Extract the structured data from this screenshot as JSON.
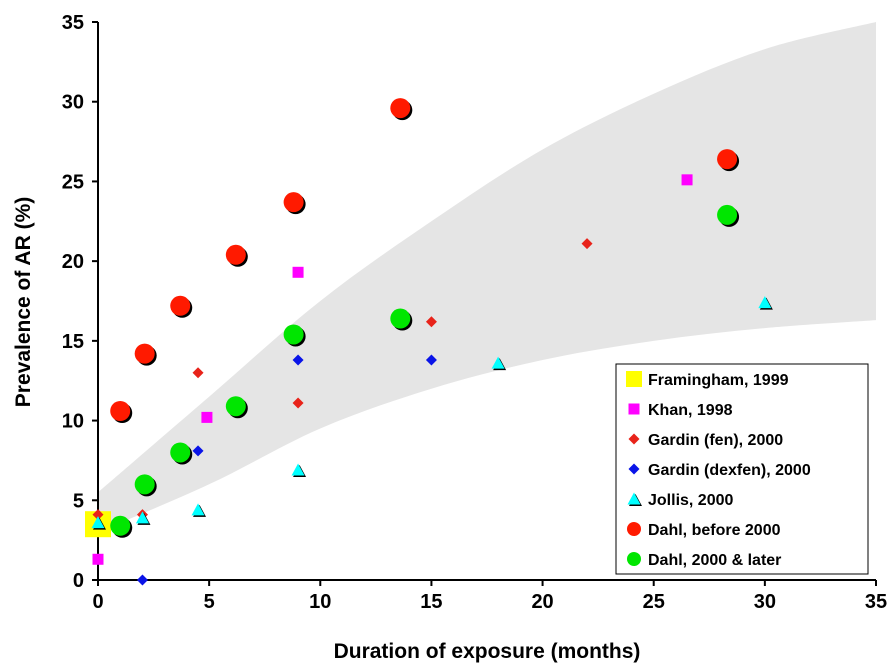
{
  "chart_data": {
    "type": "scatter",
    "title": "",
    "xlabel": "Duration of exposure (months)",
    "ylabel": "Prevalence of AR (%)",
    "xlim": [
      0,
      35
    ],
    "ylim": [
      0,
      35
    ],
    "xticks": [
      0,
      5,
      10,
      15,
      20,
      25,
      30,
      35
    ],
    "yticks": [
      0,
      5,
      10,
      15,
      20,
      25,
      30,
      35
    ],
    "grid": false,
    "legend_position": "bottom-right",
    "band": {
      "color": "#e5e5e5",
      "upper": [
        [
          0,
          5.5
        ],
        [
          5,
          11.5
        ],
        [
          10,
          17.5
        ],
        [
          15,
          22.5
        ],
        [
          20,
          27.0
        ],
        [
          25,
          30.5
        ],
        [
          30,
          33.3
        ],
        [
          35,
          35.0
        ]
      ],
      "lower": [
        [
          0,
          3.0
        ],
        [
          5,
          6.0
        ],
        [
          10,
          9.5
        ],
        [
          15,
          12.0
        ],
        [
          20,
          13.8
        ],
        [
          25,
          15.0
        ],
        [
          30,
          15.8
        ],
        [
          35,
          16.3
        ]
      ]
    },
    "series": [
      {
        "name": "Framingham, 1999",
        "marker": "square-large",
        "color": "#ffff00",
        "points": [
          [
            0,
            3.5
          ]
        ]
      },
      {
        "name": "Khan, 1998",
        "marker": "square",
        "color": "#ff00ff",
        "points": [
          [
            0,
            1.3
          ],
          [
            4.9,
            10.2
          ],
          [
            9.0,
            19.3
          ],
          [
            26.5,
            25.1
          ]
        ]
      },
      {
        "name": "Gardin (fen), 2000",
        "marker": "diamond",
        "color": "#e8231a",
        "points": [
          [
            0,
            4.1
          ],
          [
            2.0,
            4.1
          ],
          [
            4.5,
            13.0
          ],
          [
            9.0,
            11.1
          ],
          [
            15.0,
            16.2
          ],
          [
            22.0,
            21.1
          ]
        ]
      },
      {
        "name": "Gardin (dexfen), 2000",
        "marker": "diamond",
        "color": "#0a14e8",
        "points": [
          [
            2.0,
            0.0
          ],
          [
            4.5,
            8.1
          ],
          [
            9.0,
            13.8
          ],
          [
            15.0,
            13.8
          ]
        ]
      },
      {
        "name": "Jollis, 2000",
        "marker": "triangle",
        "color": "#00ffff",
        "points": [
          [
            0,
            3.6
          ],
          [
            2.0,
            3.9
          ],
          [
            4.5,
            4.4
          ],
          [
            9.0,
            6.9
          ],
          [
            18.0,
            13.6
          ],
          [
            30.0,
            17.4
          ]
        ]
      },
      {
        "name": "Dahl, before 2000",
        "marker": "circle",
        "color": "#ff1a00",
        "points": [
          [
            1.0,
            10.6
          ],
          [
            2.1,
            14.2
          ],
          [
            3.7,
            17.2
          ],
          [
            6.2,
            20.4
          ],
          [
            8.8,
            23.7
          ],
          [
            13.6,
            29.6
          ],
          [
            28.3,
            26.4
          ]
        ]
      },
      {
        "name": "Dahl, 2000 & later",
        "marker": "circle",
        "color": "#00e600",
        "points": [
          [
            1.0,
            3.4
          ],
          [
            2.1,
            6.0
          ],
          [
            3.7,
            8.0
          ],
          [
            6.2,
            10.9
          ],
          [
            8.8,
            15.4
          ],
          [
            13.6,
            16.4
          ],
          [
            28.3,
            22.9
          ]
        ]
      }
    ]
  }
}
